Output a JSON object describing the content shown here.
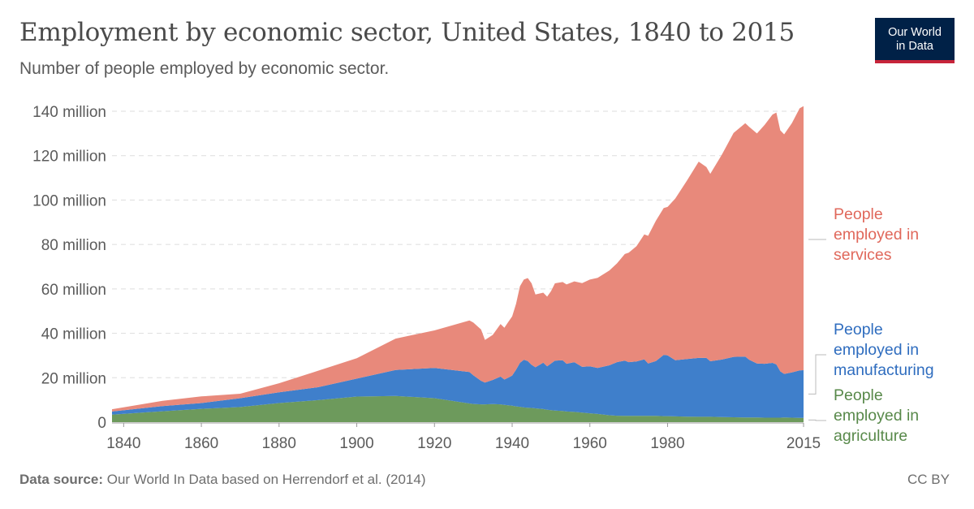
{
  "header": {
    "title": "Employment by economic sector, United States, 1840 to 2015",
    "subtitle": "Number of people employed by economic sector.",
    "logo_line1": "Our World",
    "logo_line2": "in Data"
  },
  "footer": {
    "source_label": "Data source:",
    "source_text": "Our World In Data based on Herrendorf et al. (2014)",
    "license": "CC BY"
  },
  "colors": {
    "agriculture": "#6d9a5c",
    "manufacturing": "#3f7fcb",
    "services": "#e8897b",
    "agriculture_text": "#58894a",
    "manufacturing_text": "#2f6dbf",
    "services_text": "#e0685b"
  },
  "chart_data": {
    "type": "area",
    "stacked": true,
    "title": "Employment by economic sector, United States, 1840 to 2015",
    "xlim": [
      1837,
      2015
    ],
    "ylim": [
      0,
      140000000
    ],
    "grid": true,
    "legend_placement": "right",
    "y_ticks": [
      {
        "value": 0,
        "label": "0"
      },
      {
        "value": 20000000,
        "label": "20 million"
      },
      {
        "value": 40000000,
        "label": "40 million"
      },
      {
        "value": 60000000,
        "label": "60 million"
      },
      {
        "value": 80000000,
        "label": "80 million"
      },
      {
        "value": 100000000,
        "label": "100 million"
      },
      {
        "value": 120000000,
        "label": "120 million"
      },
      {
        "value": 140000000,
        "label": "140 million"
      }
    ],
    "x_ticks": [
      {
        "value": 1840,
        "label": "1840"
      },
      {
        "value": 1860,
        "label": "1860"
      },
      {
        "value": 1880,
        "label": "1880"
      },
      {
        "value": 1900,
        "label": "1900"
      },
      {
        "value": 1920,
        "label": "1920"
      },
      {
        "value": 1940,
        "label": "1940"
      },
      {
        "value": 1960,
        "label": "1960"
      },
      {
        "value": 1980,
        "label": "1980"
      },
      {
        "value": 2015,
        "label": "2015"
      }
    ],
    "x": [
      1837,
      1850,
      1860,
      1870,
      1880,
      1890,
      1900,
      1910,
      1920,
      1929,
      1930,
      1932,
      1933,
      1935,
      1937,
      1938,
      1939,
      1940,
      1941,
      1942,
      1943,
      1944,
      1945,
      1946,
      1948,
      1949,
      1950,
      1951,
      1953,
      1954,
      1956,
      1958,
      1960,
      1962,
      1965,
      1967,
      1969,
      1970,
      1972,
      1974,
      1975,
      1977,
      1979,
      1980,
      1982,
      1985,
      1988,
      1990,
      1991,
      1994,
      1997,
      2000,
      2001,
      2003,
      2005,
      2007,
      2008,
      2009,
      2010,
      2012,
      2014,
      2015
    ],
    "series": [
      {
        "name": "People employed in agriculture",
        "values": [
          3.4,
          4.9,
          6.0,
          6.8,
          8.6,
          9.9,
          11.5,
          11.8,
          10.8,
          8.4,
          8.2,
          8.0,
          8.0,
          8.1,
          8.0,
          7.8,
          7.6,
          7.4,
          7.1,
          6.9,
          6.6,
          6.5,
          6.4,
          6.2,
          5.9,
          5.6,
          5.4,
          5.2,
          5.0,
          4.8,
          4.6,
          4.3,
          4.0,
          3.7,
          3.1,
          2.9,
          2.8,
          2.8,
          2.8,
          2.8,
          2.8,
          2.8,
          2.7,
          2.7,
          2.6,
          2.5,
          2.4,
          2.4,
          2.4,
          2.3,
          2.2,
          2.1,
          2.1,
          2.1,
          2.0,
          2.0,
          2.0,
          2.0,
          2.1,
          2.0,
          1.9,
          1.9
        ]
      },
      {
        "name": "People employed in manufacturing",
        "values": [
          1.4,
          2.3,
          2.6,
          4.0,
          4.8,
          5.8,
          8.1,
          11.7,
          13.6,
          14.2,
          12.9,
          10.6,
          9.8,
          10.9,
          12.5,
          11.4,
          12.4,
          13.6,
          16.5,
          19.8,
          21.5,
          21.0,
          19.4,
          18.5,
          20.9,
          19.5,
          21.0,
          22.5,
          22.9,
          21.5,
          22.4,
          20.6,
          21.1,
          20.7,
          22.5,
          24.1,
          24.9,
          24.2,
          24.5,
          25.5,
          23.6,
          24.7,
          27.6,
          27.4,
          25.3,
          25.9,
          26.5,
          26.5,
          25.0,
          25.9,
          27.2,
          27.4,
          26.0,
          24.3,
          24.3,
          24.7,
          24.0,
          20.9,
          19.6,
          20.4,
          21.4,
          21.5
        ]
      },
      {
        "name": "People employed in services",
        "values": [
          1.0,
          2.4,
          3.0,
          2.0,
          4.1,
          7.4,
          9.2,
          14.1,
          16.9,
          23.2,
          23.8,
          23.1,
          19.2,
          20.3,
          23.7,
          23.3,
          25.1,
          26.6,
          29.7,
          34.5,
          36.1,
          37.4,
          36.7,
          32.8,
          31.5,
          31.4,
          32.6,
          34.8,
          35.2,
          35.7,
          36.4,
          37.7,
          39.1,
          40.6,
          42.7,
          44.5,
          48.0,
          49.3,
          51.9,
          56.2,
          57.5,
          63.2,
          66.1,
          66.8,
          72.8,
          80.4,
          88.4,
          86.0,
          84.4,
          92.3,
          100.8,
          105.1,
          104.9,
          103.6,
          107.6,
          111.8,
          113.4,
          108.5,
          107.9,
          112.2,
          118.0,
          118.9
        ]
      }
    ],
    "series_labels": [
      [
        "People",
        "employed in",
        "services"
      ],
      [
        "People",
        "employed in",
        "manufacturing"
      ],
      [
        "People",
        "employed in",
        "agriculture"
      ]
    ]
  }
}
